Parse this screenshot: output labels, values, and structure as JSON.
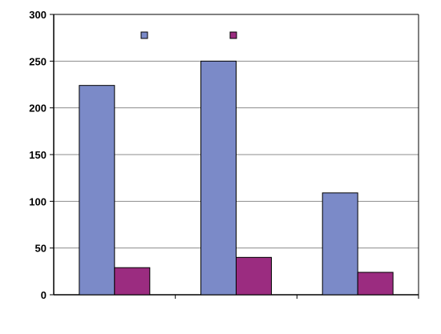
{
  "chart_data": {
    "type": "bar",
    "title": "",
    "xlabel": "",
    "ylabel": "",
    "categories": [
      "",
      "",
      ""
    ],
    "series": [
      {
        "color": "#7b8ac8",
        "values": [
          224,
          250,
          109
        ]
      },
      {
        "color": "#9b2c80",
        "values": [
          29,
          40,
          24
        ]
      }
    ],
    "ylim": [
      0,
      300
    ],
    "yticks": [
      0,
      50,
      100,
      150,
      200,
      250,
      300
    ],
    "grid": true,
    "legend_position": "top-center",
    "legend_entries": [
      "",
      ""
    ]
  }
}
